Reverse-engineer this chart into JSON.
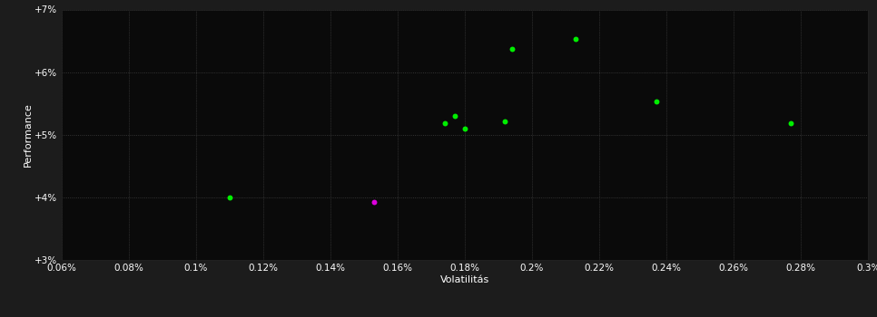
{
  "background_color": "#1c1c1c",
  "plot_bg_color": "#0a0a0a",
  "grid_color": "#404040",
  "text_color": "#ffffff",
  "xlabel": "Volatilitás",
  "ylabel": "Performance",
  "xlim": [
    0.0006,
    0.003
  ],
  "ylim": [
    0.03,
    0.07
  ],
  "x_ticks": [
    0.0006,
    0.0008,
    0.001,
    0.0012,
    0.0014,
    0.0016,
    0.0018,
    0.002,
    0.0022,
    0.0024,
    0.0026,
    0.0028,
    0.003
  ],
  "y_ticks": [
    0.03,
    0.04,
    0.05,
    0.06,
    0.07
  ],
  "x_tick_labels": [
    "0.06%",
    "0.08%",
    "0.1%",
    "0.12%",
    "0.14%",
    "0.16%",
    "0.18%",
    "0.2%",
    "0.22%",
    "0.24%",
    "0.26%",
    "0.28%",
    "0.3%"
  ],
  "y_tick_labels": [
    "+3%",
    "+4%",
    "+5%",
    "+6%",
    "+7%"
  ],
  "green_points": [
    [
      0.0011,
      0.04
    ],
    [
      0.00174,
      0.0518
    ],
    [
      0.00177,
      0.053
    ],
    [
      0.0018,
      0.051
    ],
    [
      0.00192,
      0.0522
    ],
    [
      0.00194,
      0.0637
    ],
    [
      0.00213,
      0.0653
    ],
    [
      0.00237,
      0.0553
    ],
    [
      0.00277,
      0.0518
    ]
  ],
  "magenta_points": [
    [
      0.00153,
      0.0392
    ]
  ],
  "point_size": 18,
  "green_color": "#00ee00",
  "magenta_color": "#dd00dd",
  "font_size_labels": 8,
  "font_size_ticks": 7.5
}
